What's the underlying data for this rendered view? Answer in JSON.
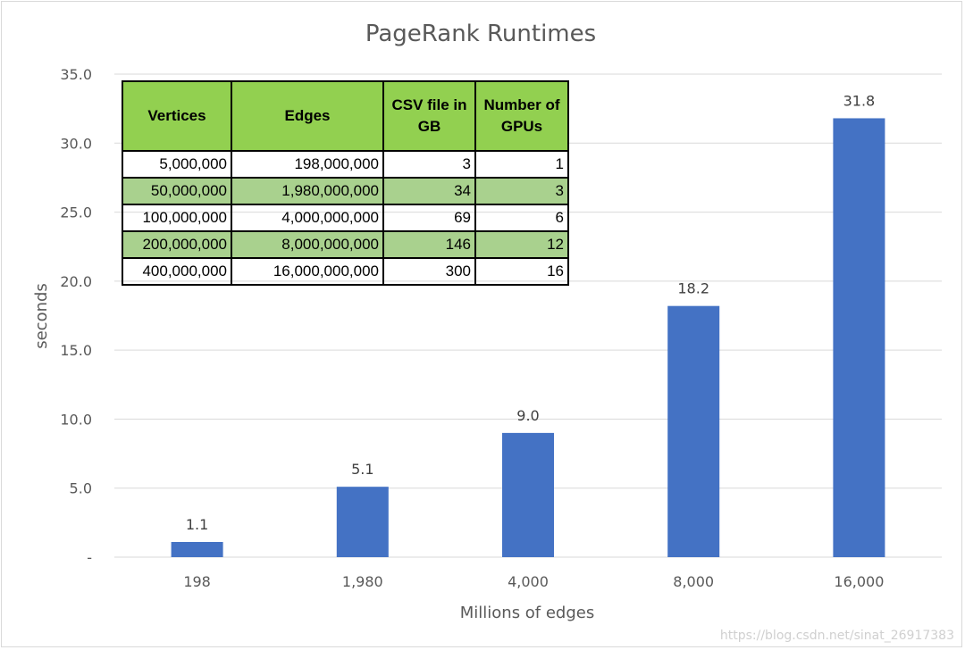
{
  "chart_data": {
    "type": "bar",
    "title": "PageRank Runtimes",
    "xlabel": "Millions of edges",
    "ylabel": "seconds",
    "categories": [
      "198",
      "1,980",
      "4,000",
      "8,000",
      "16,000"
    ],
    "values": [
      1.1,
      5.1,
      9.0,
      18.2,
      31.8
    ],
    "value_labels": [
      "1.1",
      "5.1",
      "9.0",
      "18.2",
      "31.8"
    ],
    "ylim": [
      0,
      35
    ],
    "yticks": [
      0,
      5,
      10,
      15,
      20,
      25,
      30,
      35
    ],
    "ytick_labels": [
      "-",
      "5.0",
      "10.0",
      "15.0",
      "20.0",
      "25.0",
      "30.0",
      "35.0"
    ],
    "grid": true,
    "bar_color": "#4472c4"
  },
  "table": {
    "headers": [
      "Vertices",
      "Edges",
      "CSV file in GB",
      "Number of GPUs"
    ],
    "rows": [
      [
        "5,000,000",
        "198,000,000",
        "3",
        "1"
      ],
      [
        "50,000,000",
        "1,980,000,000",
        "34",
        "3"
      ],
      [
        "100,000,000",
        "4,000,000,000",
        "69",
        "6"
      ],
      [
        "200,000,000",
        "8,000,000,000",
        "146",
        "12"
      ],
      [
        "400,000,000",
        "16,000,000,000",
        "300",
        "16"
      ]
    ],
    "header_color": "#92d050",
    "alt_row_color": "#a9d18e"
  },
  "watermark": "https://blog.csdn.net/sinat_26917383"
}
